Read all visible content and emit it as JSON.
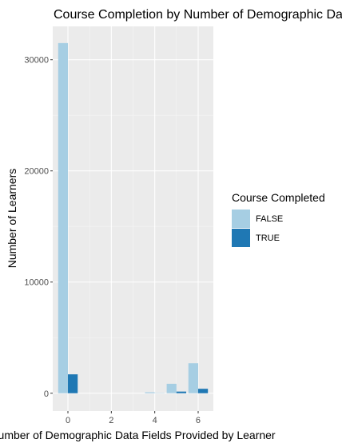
{
  "chart_data": {
    "type": "bar",
    "title": "Course Completion by Number of Demographic Data Fields Provided by Learner",
    "xlabel": "Number of Demographic Data Fields Provided by Learner",
    "ylabel": "Number of Learners",
    "x": [
      0,
      1,
      2,
      3,
      4,
      5,
      6
    ],
    "xlim": [
      -0.7,
      6.7
    ],
    "ylim": [
      -1600,
      33000
    ],
    "x_ticks": [
      0,
      2,
      4,
      6
    ],
    "y_ticks": [
      0,
      10000,
      20000,
      30000
    ],
    "grid": true,
    "legend": {
      "title": "Course Completed",
      "position": "right"
    },
    "series": [
      {
        "name": "FALSE",
        "color": "#a6cee3",
        "values": [
          31500,
          0,
          0,
          0,
          90,
          850,
          2700
        ]
      },
      {
        "name": "TRUE",
        "color": "#1f78b4",
        "values": [
          1700,
          0,
          0,
          0,
          10,
          150,
          400
        ]
      }
    ]
  }
}
